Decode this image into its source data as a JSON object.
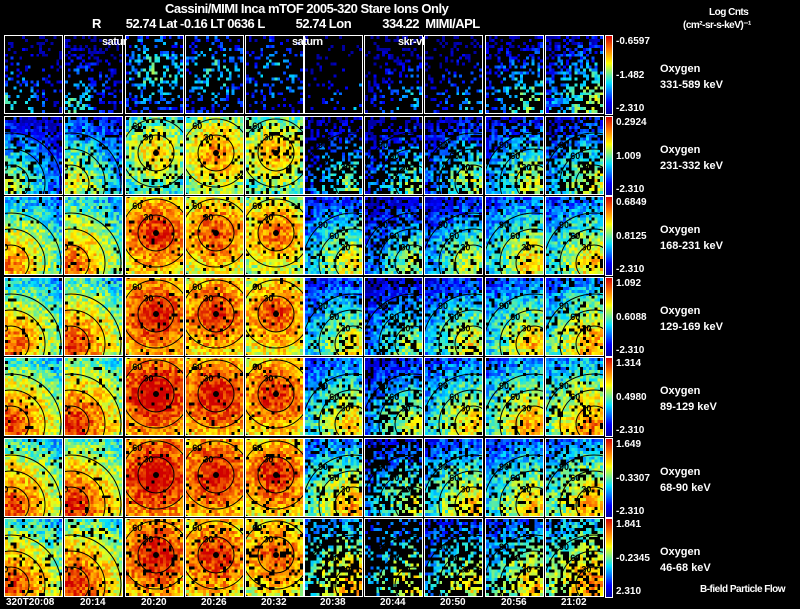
{
  "header": {
    "title": "Cassini/MIMI Inca mTOF  2005-320   Stare   Ions Only",
    "subtitle": "R        52.74 Lat -0.16 LT 0636 L          52.74 Lon          334.22  MIMI/APL",
    "units_line1": "Log Cnts",
    "units_line2": "(cm²-sr-s-keV)⁻¹"
  },
  "panel_tags": [
    "satur",
    "saturn",
    "skr-vl"
  ],
  "footer_note": "B-field Particle Flow",
  "chart_data": {
    "type": "heatmap",
    "title": "Cassini/MIMI Inca mTOF 2005-320 Stare Ions Only",
    "x_ticks": [
      "320T20:08",
      "20:14",
      "20:20",
      "20:26",
      "20:32",
      "20:38",
      "20:44",
      "20:50",
      "20:56",
      "21:02"
    ],
    "rows": [
      {
        "species": "Oxygen",
        "energy": "331-589 keV",
        "cb_max": "-0.6597",
        "cb_mid": "-1.482",
        "cb_min": "-2.310"
      },
      {
        "species": "Oxygen",
        "energy": "231-332 keV",
        "cb_max": "0.2924",
        "cb_mid": "1.009",
        "cb_min": "-2.310"
      },
      {
        "species": "Oxygen",
        "energy": "168-231 keV",
        "cb_max": "0.6849",
        "cb_mid": "0.8125",
        "cb_min": "-2.310"
      },
      {
        "species": "Oxygen",
        "energy": "129-169 keV",
        "cb_max": "1.092",
        "cb_mid": "0.6088",
        "cb_min": "-2.310"
      },
      {
        "species": "Oxygen",
        "energy": "89-129 keV",
        "cb_max": "1.314",
        "cb_mid": "0.4980",
        "cb_min": "-2.310"
      },
      {
        "species": "Oxygen",
        "energy": "68-90 keV",
        "cb_max": "1.649",
        "cb_mid": "-0.3307",
        "cb_min": "-2.310"
      },
      {
        "species": "Oxygen",
        "energy": "46-68 keV",
        "cb_max": "1.841",
        "cb_mid": "-0.2345",
        "cb_min": "2.310"
      }
    ],
    "mean_intensity_fraction": [
      [
        0.2,
        0.2,
        0.25,
        0.2,
        0.15,
        0.1,
        0.15,
        0.15,
        0.3,
        0.35
      ],
      [
        0.35,
        0.45,
        0.5,
        0.6,
        0.55,
        0.3,
        0.3,
        0.35,
        0.4,
        0.4
      ],
      [
        0.6,
        0.65,
        0.75,
        0.7,
        0.65,
        0.45,
        0.35,
        0.4,
        0.5,
        0.5
      ],
      [
        0.65,
        0.7,
        0.8,
        0.75,
        0.7,
        0.45,
        0.35,
        0.45,
        0.5,
        0.55
      ],
      [
        0.7,
        0.75,
        0.85,
        0.8,
        0.75,
        0.5,
        0.4,
        0.5,
        0.55,
        0.6
      ],
      [
        0.7,
        0.75,
        0.85,
        0.8,
        0.75,
        0.55,
        0.4,
        0.5,
        0.5,
        0.55
      ],
      [
        0.7,
        0.75,
        0.8,
        0.75,
        0.7,
        0.55,
        0.45,
        0.45,
        0.5,
        0.6
      ]
    ],
    "coverage_fraction": [
      [
        0.25,
        0.3,
        0.35,
        0.3,
        0.2,
        0.1,
        0.25,
        0.2,
        0.35,
        0.5
      ],
      [
        0.8,
        0.85,
        0.85,
        0.9,
        0.8,
        0.4,
        0.5,
        0.6,
        0.7,
        0.6
      ],
      [
        0.95,
        0.95,
        0.95,
        0.95,
        0.9,
        0.85,
        0.7,
        0.85,
        0.9,
        0.85
      ],
      [
        0.95,
        0.95,
        0.95,
        0.95,
        0.95,
        0.85,
        0.7,
        0.85,
        0.9,
        0.85
      ],
      [
        0.95,
        0.95,
        0.95,
        0.95,
        0.95,
        0.85,
        0.7,
        0.85,
        0.9,
        0.85
      ],
      [
        0.95,
        0.95,
        0.95,
        0.95,
        0.9,
        0.8,
        0.5,
        0.8,
        0.85,
        0.8
      ],
      [
        0.9,
        0.9,
        0.9,
        0.9,
        0.8,
        0.5,
        0.3,
        0.5,
        0.6,
        0.6
      ]
    ],
    "contour_levels": [
      "30",
      "60",
      "90",
      "120",
      "150"
    ]
  }
}
